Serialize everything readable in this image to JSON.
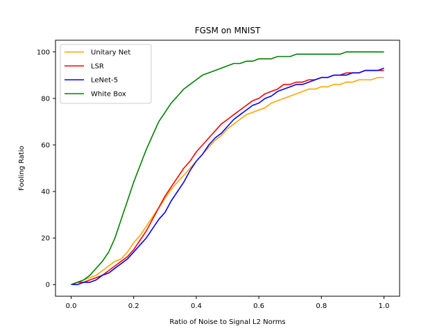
{
  "chart_data": {
    "type": "line",
    "title": "FGSM on MNIST",
    "xlabel": "Ratio of Noise to Signal L2 Norms",
    "ylabel": "Fooling Ratio",
    "xlim": [
      -0.05,
      1.05
    ],
    "ylim": [
      -5,
      105
    ],
    "xticks": [
      0.0,
      0.2,
      0.4,
      0.6,
      0.8,
      1.0
    ],
    "xtick_labels": [
      "0.0",
      "0.2",
      "0.4",
      "0.6",
      "0.8",
      "1.0"
    ],
    "yticks": [
      0,
      20,
      40,
      60,
      80,
      100
    ],
    "ytick_labels": [
      "0",
      "20",
      "40",
      "60",
      "80",
      "100"
    ],
    "grid": false,
    "legend_position": "upper-left",
    "series": [
      {
        "name": "Unitary Net",
        "color": "#ffa500",
        "x": [
          0,
          0.02,
          0.04,
          0.06,
          0.08,
          0.1,
          0.12,
          0.14,
          0.16,
          0.18,
          0.2,
          0.22,
          0.24,
          0.26,
          0.28,
          0.3,
          0.32,
          0.34,
          0.36,
          0.38,
          0.4,
          0.42,
          0.44,
          0.46,
          0.48,
          0.5,
          0.52,
          0.54,
          0.56,
          0.58,
          0.6,
          0.62,
          0.64,
          0.66,
          0.68,
          0.7,
          0.72,
          0.74,
          0.76,
          0.78,
          0.8,
          0.82,
          0.84,
          0.86,
          0.88,
          0.9,
          0.92,
          0.94,
          0.96,
          0.98,
          1.0
        ],
        "y": [
          0,
          1,
          2,
          3,
          4,
          6,
          8,
          10,
          11,
          14,
          18,
          21,
          25,
          29,
          33,
          37,
          41,
          44,
          47,
          50,
          53,
          56,
          59,
          62,
          64,
          67,
          69,
          71,
          73,
          74,
          75,
          76,
          78,
          79,
          80,
          81,
          82,
          83,
          84,
          84,
          85,
          85,
          86,
          86,
          87,
          87,
          88,
          88,
          88,
          89,
          89
        ]
      },
      {
        "name": "LSR",
        "color": "#ff0000",
        "x": [
          0,
          0.02,
          0.04,
          0.06,
          0.08,
          0.1,
          0.12,
          0.14,
          0.16,
          0.18,
          0.2,
          0.22,
          0.24,
          0.26,
          0.28,
          0.3,
          0.32,
          0.34,
          0.36,
          0.38,
          0.4,
          0.42,
          0.44,
          0.46,
          0.48,
          0.5,
          0.52,
          0.54,
          0.56,
          0.58,
          0.6,
          0.62,
          0.64,
          0.66,
          0.68,
          0.7,
          0.72,
          0.74,
          0.76,
          0.78,
          0.8,
          0.82,
          0.84,
          0.86,
          0.88,
          0.9,
          0.92,
          0.94,
          0.96,
          0.98,
          1.0
        ],
        "y": [
          0,
          1,
          1,
          2,
          3,
          4,
          6,
          8,
          10,
          12,
          15,
          19,
          23,
          28,
          33,
          38,
          42,
          46,
          50,
          53,
          57,
          60,
          63,
          66,
          69,
          71,
          73,
          75,
          77,
          79,
          80,
          82,
          83,
          84,
          86,
          86,
          87,
          87,
          88,
          88,
          89,
          89,
          90,
          90,
          91,
          91,
          91,
          92,
          92,
          92,
          92
        ]
      },
      {
        "name": "LeNet-5",
        "color": "#0000ff",
        "x": [
          0,
          0.02,
          0.04,
          0.06,
          0.08,
          0.1,
          0.12,
          0.14,
          0.16,
          0.18,
          0.2,
          0.22,
          0.24,
          0.26,
          0.28,
          0.3,
          0.32,
          0.34,
          0.36,
          0.38,
          0.4,
          0.42,
          0.44,
          0.46,
          0.48,
          0.5,
          0.52,
          0.54,
          0.56,
          0.58,
          0.6,
          0.62,
          0.64,
          0.66,
          0.68,
          0.7,
          0.72,
          0.74,
          0.76,
          0.78,
          0.8,
          0.82,
          0.84,
          0.86,
          0.88,
          0.9,
          0.92,
          0.94,
          0.96,
          0.98,
          1.0
        ],
        "y": [
          0,
          0,
          1,
          1,
          2,
          4,
          5,
          7,
          9,
          11,
          14,
          17,
          20,
          24,
          28,
          31,
          36,
          40,
          44,
          49,
          53,
          56,
          60,
          63,
          65,
          68,
          71,
          73,
          75,
          77,
          78,
          80,
          81,
          83,
          84,
          85,
          86,
          86,
          87,
          88,
          89,
          89,
          90,
          90,
          90,
          91,
          91,
          92,
          92,
          92,
          93
        ]
      },
      {
        "name": "White Box",
        "color": "#008000",
        "x": [
          0,
          0.02,
          0.04,
          0.06,
          0.08,
          0.1,
          0.12,
          0.14,
          0.16,
          0.18,
          0.2,
          0.22,
          0.24,
          0.26,
          0.28,
          0.3,
          0.32,
          0.34,
          0.36,
          0.38,
          0.4,
          0.42,
          0.44,
          0.46,
          0.48,
          0.5,
          0.52,
          0.54,
          0.56,
          0.58,
          0.6,
          0.62,
          0.64,
          0.66,
          0.68,
          0.7,
          0.72,
          0.74,
          0.76,
          0.78,
          0.8,
          0.82,
          0.84,
          0.86,
          0.88,
          0.9,
          0.92,
          0.94,
          0.96,
          0.98,
          1.0
        ],
        "y": [
          0,
          1,
          2,
          4,
          7,
          10,
          14,
          20,
          28,
          36,
          44,
          51,
          58,
          64,
          70,
          74,
          78,
          81,
          84,
          86,
          88,
          90,
          91,
          92,
          93,
          94,
          95,
          95,
          96,
          96,
          97,
          97,
          97,
          98,
          98,
          98,
          99,
          99,
          99,
          99,
          99,
          99,
          99,
          99,
          100,
          100,
          100,
          100,
          100,
          100,
          100
        ]
      }
    ]
  }
}
